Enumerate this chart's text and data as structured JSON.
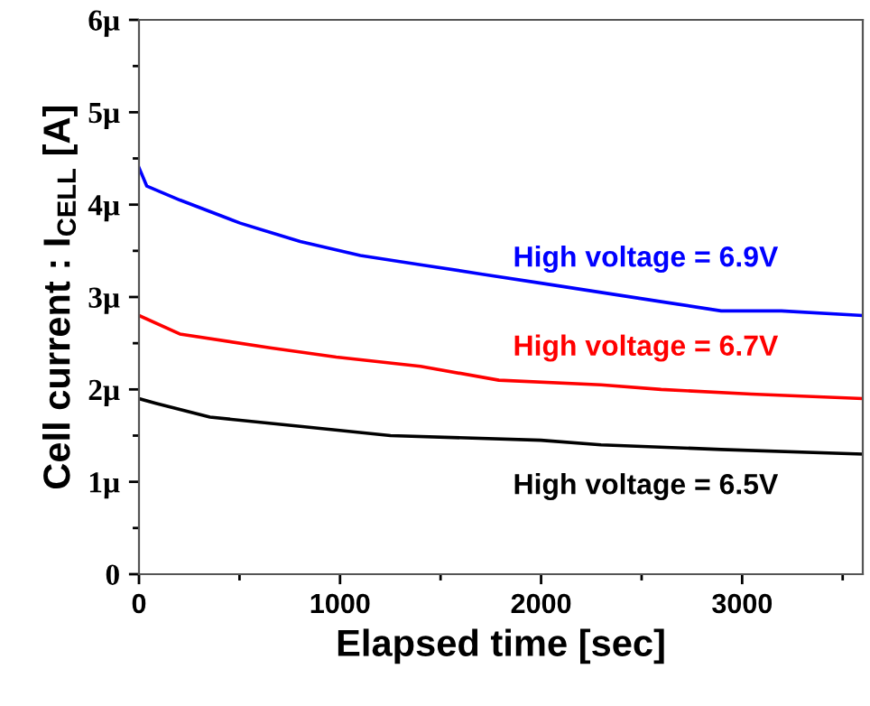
{
  "chart_data": {
    "type": "line",
    "xlabel": "Elapsed time [sec]",
    "ylabel": "Cell current : I$_{CELL}$ [A]",
    "xlim": [
      0,
      3600
    ],
    "xticks": [
      0,
      1000,
      2000,
      3000
    ],
    "ylim": [
      0,
      6
    ],
    "yticks": [
      0,
      {
        "value": 1,
        "label": "1µ"
      },
      {
        "value": 2,
        "label": "2µ"
      },
      {
        "value": 3,
        "label": "3µ"
      },
      {
        "value": 4,
        "label": "4µ"
      },
      {
        "value": 5,
        "label": "5µ"
      },
      {
        "value": 6,
        "label": "6µ"
      }
    ],
    "grid": false,
    "legend": false,
    "marker": "none",
    "line_style": "solid",
    "series": [
      {
        "color": "#0000ff",
        "x": [
          0,
          39,
          203,
          503,
          802,
          1101,
          1400,
          1700,
          1999,
          2298,
          2597,
          2896,
          3195,
          3600
        ],
        "values": [
          4.4,
          4.2,
          4.05,
          3.8,
          3.6,
          3.45,
          3.35,
          3.25,
          3.15,
          3.05,
          2.95,
          2.85,
          2.85,
          2.8
        ]
      },
      {
        "color": "#ff0000",
        "x": [
          0,
          203,
          652,
          981,
          1400,
          1790,
          2298,
          2597,
          3046,
          3600
        ],
        "values": [
          2.8,
          2.6,
          2.45,
          2.35,
          2.25,
          2.1,
          2.05,
          2.0,
          1.95,
          1.9
        ]
      },
      {
        "color": "#000000",
        "x": [
          0,
          84,
          353,
          802,
          1251,
          1999,
          2298,
          2896,
          3600
        ],
        "values": [
          1.9,
          1.85,
          1.7,
          1.6,
          1.5,
          1.45,
          1.4,
          1.35,
          1.3
        ]
      }
    ],
    "annotations": [
      "High voltage = 6.9V",
      "High voltage = 6.7V",
      "High voltage = 6.5V"
    ]
  }
}
